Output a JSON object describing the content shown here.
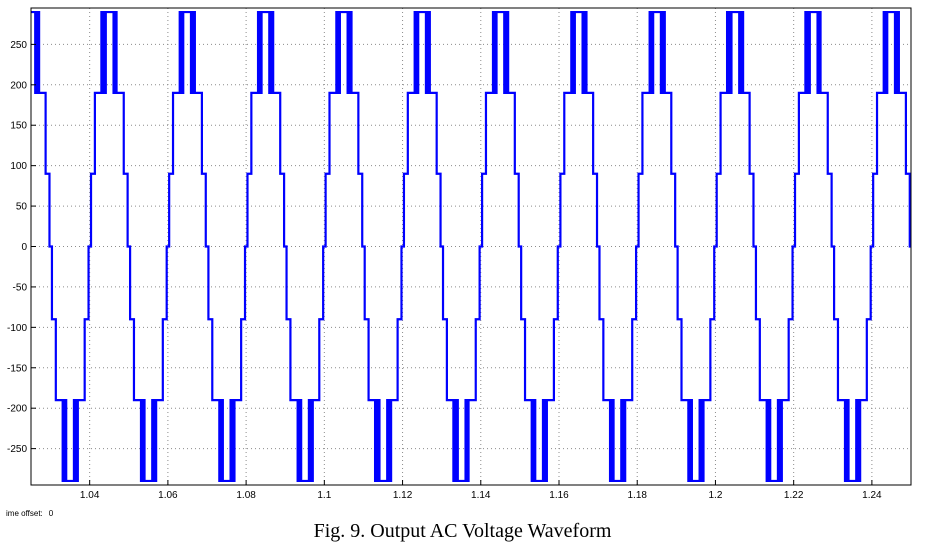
{
  "chart_data": {
    "type": "line",
    "title": "",
    "xlabel": "",
    "ylabel": "",
    "xlim": [
      1.025,
      1.25
    ],
    "ylim": [
      -295,
      295
    ],
    "xticks": [
      1.04,
      1.06,
      1.08,
      1.1,
      1.12,
      1.14,
      1.16,
      1.18,
      1.2,
      1.22,
      1.24
    ],
    "xtick_labels": [
      "1.04",
      "1.06",
      "1.08",
      "1.1",
      "1.12",
      "1.14",
      "1.16",
      "1.18",
      "1.2",
      "1.22",
      "1.24"
    ],
    "yticks": [
      250,
      200,
      150,
      100,
      50,
      0,
      -50,
      -100,
      -150,
      -200,
      -250
    ],
    "ytick_labels": [
      "250",
      "200",
      "150",
      "100",
      "50",
      "0",
      "-50",
      "-100",
      "-150",
      "-200",
      "-250"
    ],
    "grid": true,
    "series": [
      {
        "color": "#0000ff",
        "frequency_hz": 50,
        "phase_t0": 1.0,
        "step_levels": [
          0,
          90,
          190,
          290
        ],
        "step_thresholds": [
          0.1,
          0.4,
          0.8
        ],
        "pwm_band_low": 190,
        "pwm_band_high": 290
      }
    ]
  },
  "offset_label": "ime offset:",
  "offset_value": "0",
  "caption": "Fig. 9. Output AC Voltage Waveform"
}
